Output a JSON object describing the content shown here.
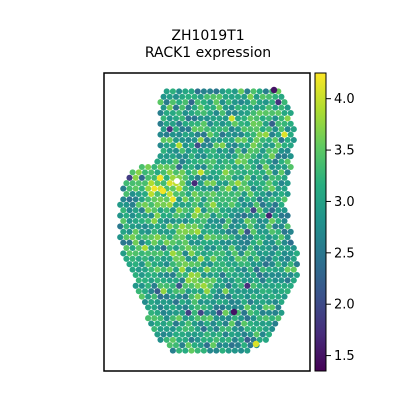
{
  "chart_data": {
    "type": "scatter",
    "plot_kind": "spatial-spot-map",
    "title_line1": "ZH1019T1",
    "title_line2": "RACK1 expression",
    "xlabel": "",
    "ylabel": "",
    "axis_ticks_shown": false,
    "grid": false,
    "colormap": "viridis",
    "color_range": [
      1.35,
      4.25
    ],
    "colorbar_ticks": [
      1.5,
      2.0,
      2.5,
      3.0,
      3.5,
      4.0
    ],
    "colorbar_tick_labels": [
      "1.5",
      "2.0",
      "2.5",
      "3.0",
      "3.5",
      "4.0"
    ],
    "colorbar_position": "right",
    "value_distribution": {
      "typical_range": [
        2.6,
        3.5
      ],
      "mean": 3.0
    },
    "notable_spots": [
      {
        "region": "left lobe cluster",
        "value": 4.2
      },
      {
        "region": "lower-right edge",
        "value": 4.1
      },
      {
        "region": "upper-right edge",
        "value": 1.5
      },
      {
        "region": "lower interior",
        "value": 1.5
      }
    ]
  }
}
